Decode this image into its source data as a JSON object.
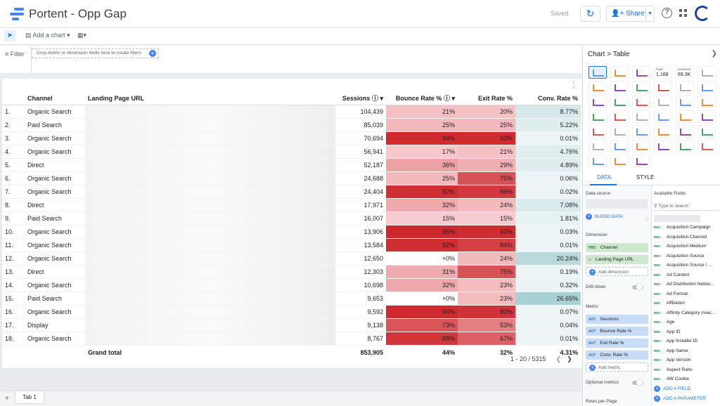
{
  "app": {
    "title": "Portent - Opp Gap",
    "saved": "Saved",
    "share_label": "Share"
  },
  "toolbar": {
    "add_chart": "Add a chart"
  },
  "filter": {
    "label": "Filter",
    "placeholder": "Drop metric or dimension fields here to create filters"
  },
  "table": {
    "headers": {
      "channel": "Channel",
      "url": "Landing Page URL",
      "sessions": "Sessions",
      "bounce": "Bounce Rate %",
      "exit": "Exit Rate %",
      "conv": "Conv. Rate %"
    },
    "rows": [
      {
        "idx": "1.",
        "channel": "Organic Search",
        "sessions": "104,439",
        "bounce": "21%",
        "exit": "20%",
        "conv": "8.77%"
      },
      {
        "idx": "2.",
        "channel": "Paid Search",
        "sessions": "85,039",
        "bounce": "25%",
        "exit": "25%",
        "conv": "5.22%"
      },
      {
        "idx": "3.",
        "channel": "Organic Search",
        "sessions": "70,694",
        "bounce": "94%",
        "exit": "93%",
        "conv": "0.01%"
      },
      {
        "idx": "4.",
        "channel": "Organic Search",
        "sessions": "56,941",
        "bounce": "17%",
        "exit": "21%",
        "conv": "4.76%"
      },
      {
        "idx": "5.",
        "channel": "Direct",
        "sessions": "52,187",
        "bounce": "36%",
        "exit": "29%",
        "conv": "4.89%"
      },
      {
        "idx": "6.",
        "channel": "Organic Search",
        "sessions": "24,688",
        "bounce": "25%",
        "exit": "75%",
        "conv": "0.06%"
      },
      {
        "idx": "7.",
        "channel": "Organic Search",
        "sessions": "24,404",
        "bounce": "92%",
        "exit": "86%",
        "conv": "0.02%"
      },
      {
        "idx": "8.",
        "channel": "Direct",
        "sessions": "17,971",
        "bounce": "32%",
        "exit": "24%",
        "conv": "7.08%"
      },
      {
        "idx": "9.",
        "channel": "Paid Search",
        "sessions": "16,007",
        "bounce": "15%",
        "exit": "15%",
        "conv": "1.81%"
      },
      {
        "idx": "10.",
        "channel": "Organic Search",
        "sessions": "13,906",
        "bounce": "95%",
        "exit": "93%",
        "conv": "0.03%"
      },
      {
        "idx": "11.",
        "channel": "Organic Search",
        "sessions": "13,584",
        "bounce": "92%",
        "exit": "84%",
        "conv": "0.01%"
      },
      {
        "idx": "12.",
        "channel": "Organic Search",
        "sessions": "12,650",
        "bounce": "+0%",
        "exit": "24%",
        "conv": "20.24%"
      },
      {
        "idx": "13.",
        "channel": "Direct",
        "sessions": "12,303",
        "bounce": "31%",
        "exit": "75%",
        "conv": "0.19%"
      },
      {
        "idx": "14.",
        "channel": "Organic Search",
        "sessions": "10,698",
        "bounce": "32%",
        "exit": "23%",
        "conv": "0.32%"
      },
      {
        "idx": "15.",
        "channel": "Paid Search",
        "sessions": "9,653",
        "bounce": "+0%",
        "exit": "23%",
        "conv": "26.65%"
      },
      {
        "idx": "16.",
        "channel": "Organic Search",
        "sessions": "9,592",
        "bounce": "94%",
        "exit": "90%",
        "conv": "0.07%"
      },
      {
        "idx": "17.",
        "channel": "Display",
        "sessions": "9,138",
        "bounce": "73%",
        "exit": "53%",
        "conv": "0.04%"
      },
      {
        "idx": "18.",
        "channel": "Organic Search",
        "sessions": "8,767",
        "bounce": "88%",
        "exit": "67%",
        "conv": "0.01%"
      }
    ],
    "total": {
      "label": "Grand total",
      "sessions": "853,905",
      "bounce": "44%",
      "exit": "32%",
      "conv": "4.31%"
    },
    "pager": "1 - 20 / 5315"
  },
  "tabs": {
    "tab1": "Tab 1"
  },
  "panel": {
    "crumb_chart": "Chart",
    "crumb_sep": ">",
    "crumb_type": "Table",
    "tile_total_label": "Total",
    "tile_total_value": "1,168",
    "tile_sessions_label": "Sessions",
    "tile_sessions_value": "69.3K",
    "tab_data": "DATA",
    "tab_style": "STYLE",
    "data_source": "Data source",
    "blend": "BLEND DATA",
    "dimension": "Dimension",
    "dimensions": [
      "Channel",
      "Landing Page URL"
    ],
    "add_dimension": "Add dimension",
    "drill_down": "Drill down",
    "metric": "Metric",
    "metrics": [
      "Sessions",
      "Bounce Rate %",
      "Exit Rate %",
      "Conv. Rate %"
    ],
    "add_metric": "Add metric",
    "optional_metrics": "Optional metrics",
    "rows_per_page": "Rows per Page",
    "available_fields": "Available Fields",
    "search_placeholder": "Type to search",
    "fields": [
      "Acquisition Campaign",
      "Acquisition Channel",
      "Acquisition Medium",
      "Acquisition Source",
      "Acquisition Source / ...",
      "Ad Content",
      "Ad Distribution Netwo...",
      "Ad Format",
      "Affiliation",
      "Affinity Category (reac...",
      "Age",
      "App ID",
      "App Installer ID",
      "App Name",
      "App Version",
      "Aspect Ratio",
      "AW Cookie"
    ],
    "add_field": "ADD A FIELD",
    "add_parameter": "ADD A PARAMETER"
  }
}
